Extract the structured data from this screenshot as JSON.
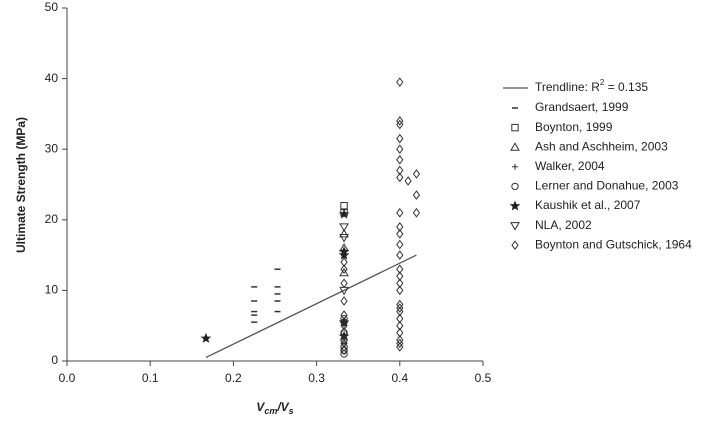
{
  "chart_data": {
    "type": "scatter",
    "ylabel": "Ultimate Strength (MPa)",
    "xlabel_parts": [
      "V",
      "cm",
      "/V",
      "s"
    ],
    "xlim": [
      0,
      0.5
    ],
    "ylim": [
      0,
      50
    ],
    "xticks": [
      {
        "value": 0,
        "label": "0.0"
      },
      0.1,
      0.2,
      0.3,
      0.4,
      0.5
    ],
    "yticks": [
      0,
      10,
      20,
      30,
      40,
      50
    ],
    "grid": false,
    "trendline": {
      "name": "Trendline: R",
      "name_sup": "2",
      "name_suffix": " = 0.135",
      "color": "#555",
      "x": [
        0.167,
        0.42
      ],
      "values": [
        0.5,
        15
      ]
    },
    "series": [
      {
        "name": "Grandsaert, 1999",
        "marker": "dash",
        "color": "#333",
        "x": [
          0.225,
          0.225,
          0.225,
          0.225,
          0.225,
          0.253,
          0.253,
          0.253,
          0.253,
          0.253
        ],
        "values": [
          5.5,
          6.5,
          7,
          8.5,
          10.5,
          7,
          8.5,
          9.5,
          10.5,
          13
        ]
      },
      {
        "name": "Boynton, 1999",
        "marker": "square",
        "color": "#333",
        "x": [
          0.333,
          0.333
        ],
        "values": [
          22,
          21
        ]
      },
      {
        "name": "Ash and Aschheim, 2003",
        "marker": "triangle",
        "color": "#333",
        "x": [
          0.333,
          0.333,
          0.333
        ],
        "values": [
          12.5,
          16,
          18
        ]
      },
      {
        "name": "Walker, 2004",
        "marker": "plus",
        "color": "#333",
        "x": [
          0.333,
          0.333
        ],
        "values": [
          2.5,
          5
        ]
      },
      {
        "name": "Lerner and Donahue, 2003",
        "marker": "circle",
        "color": "#333",
        "x": [
          0.333,
          0.333,
          0.333,
          0.333,
          0.333,
          0.333,
          0.333
        ],
        "values": [
          1,
          1.5,
          2,
          3,
          4,
          5.5,
          6
        ]
      },
      {
        "name": "Kaushik et al., 2007",
        "marker": "star",
        "color": "#222",
        "x": [
          0.167,
          0.333,
          0.333,
          0.333,
          0.333,
          0.333
        ],
        "values": [
          3.2,
          20.8,
          15,
          15.5,
          5.5,
          3.5
        ]
      },
      {
        "name": "NLA, 2002",
        "marker": "downtriangle",
        "color": "#333",
        "x": [
          0.333,
          0.333,
          0.333
        ],
        "values": [
          19,
          17.5,
          10
        ]
      },
      {
        "name": "Boynton and Gutschick, 1964",
        "marker": "diamond",
        "color": "#333",
        "x": [
          0.4,
          0.4,
          0.4,
          0.4,
          0.4,
          0.4,
          0.4,
          0.4,
          0.4,
          0.4,
          0.4,
          0.4,
          0.4,
          0.4,
          0.4,
          0.4,
          0.4,
          0.4,
          0.4,
          0.4,
          0.4,
          0.4,
          0.4,
          0.4,
          0.4,
          0.4,
          0.333,
          0.333,
          0.333,
          0.333,
          0.333,
          0.333,
          0.333,
          0.333,
          0.333,
          0.42,
          0.42,
          0.42,
          0.41
        ],
        "values": [
          39.5,
          34,
          33.5,
          31.5,
          30,
          28.5,
          27,
          26,
          21,
          19,
          18,
          16.5,
          15,
          13,
          12,
          11,
          10,
          8,
          7.5,
          7,
          6,
          5,
          4,
          3,
          2.5,
          2,
          14,
          13,
          11,
          8.5,
          6.5,
          5,
          4,
          2.5,
          1.5,
          26.5,
          23.5,
          21,
          25.5
        ]
      }
    ]
  }
}
